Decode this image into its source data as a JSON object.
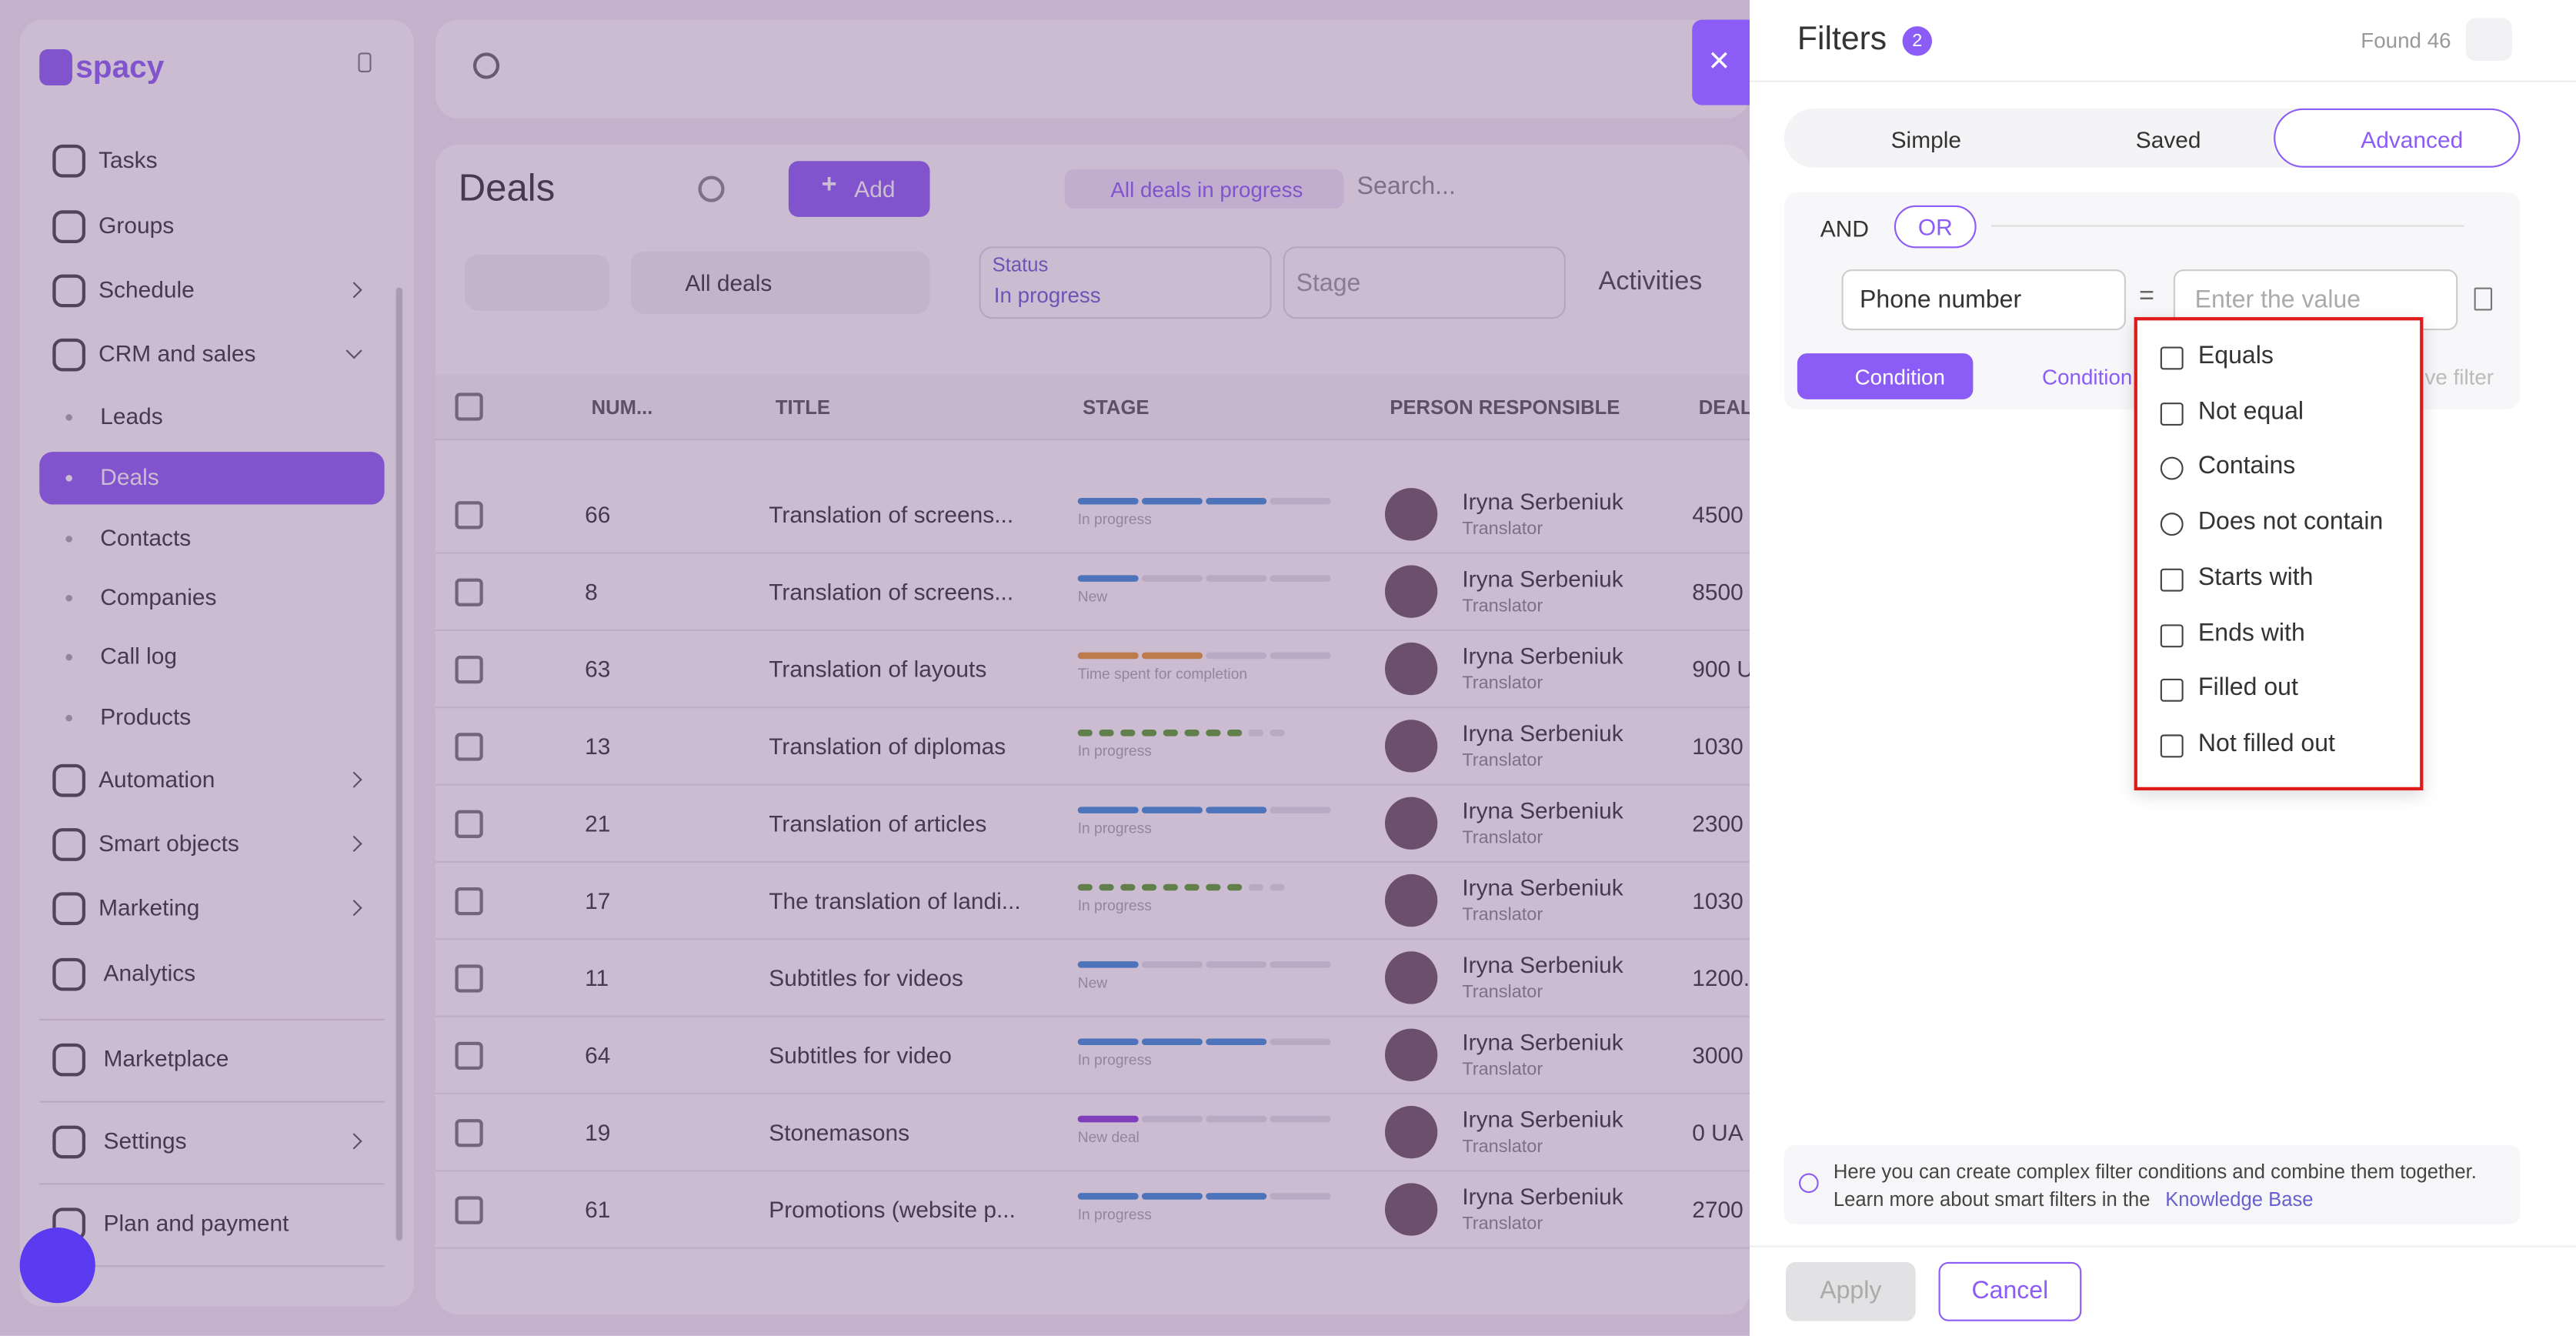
{
  "sidebar": {
    "logo": "spacy",
    "nav": [
      "Tasks",
      "Groups",
      "Schedule",
      "CRM and sales",
      "Leads",
      "Deals",
      "Contacts",
      "Companies",
      "Call log",
      "Products",
      "Automation",
      "Smart objects",
      "Marketing",
      "Analytics",
      "Marketplace",
      "Settings",
      "Plan and payment"
    ]
  },
  "main": {
    "title": "Deals",
    "add": "Add",
    "chip": "All deals in progress",
    "search": "Search...",
    "view": "All deals",
    "status_label": "Status",
    "status_value": "In progress",
    "stage": "Stage",
    "activities": "Activities",
    "headers": [
      "NUM...",
      "TITLE",
      "STAGE",
      "PERSON RESPONSIBLE",
      "DEAL"
    ],
    "rows": [
      [
        66,
        "Translation of screens...",
        "In progress",
        "Iryna Serbeniuk",
        "Translator",
        "4500"
      ],
      [
        8,
        "Translation of screens...",
        "New",
        "Iryna Serbeniuk",
        "Translator",
        "8500"
      ],
      [
        63,
        "Translation of layouts",
        "Time spent for completion",
        "Iryna Serbeniuk",
        "Translator",
        "900 U"
      ],
      [
        13,
        "Translation of diplomas",
        "In progress",
        "Iryna Serbeniuk",
        "Translator",
        "1030"
      ],
      [
        21,
        "Translation of articles",
        "In progress",
        "Iryna Serbeniuk",
        "Translator",
        "2300"
      ],
      [
        17,
        "The translation of landi...",
        "In progress",
        "Iryna Serbeniuk",
        "Translator",
        "1030"
      ],
      [
        11,
        "Subtitles for videos",
        "New",
        "Iryna Serbeniuk",
        "Translator",
        "1200."
      ],
      [
        64,
        "Subtitles for video",
        "In progress",
        "Iryna Serbeniuk",
        "Translator",
        "3000"
      ],
      [
        19,
        "Stonemasons",
        "New deal",
        "Iryna Serbeniuk",
        "Translator",
        "0 UA"
      ],
      [
        61,
        "Promotions (website p...",
        "In progress",
        "Iryna Serbeniuk",
        "Translator",
        "2700"
      ]
    ]
  },
  "filters": {
    "title": "Filters",
    "count": 2,
    "found": "Found 46",
    "tabs": [
      "Simple",
      "Saved",
      "Advanced"
    ],
    "and": "AND",
    "or": "OR",
    "field": "Phone number",
    "operator": "=",
    "placeholder": "Enter the value",
    "buttons": [
      "Condition",
      "Condition",
      "ve filter"
    ],
    "options": [
      "Equals",
      "Not equal",
      "Contains",
      "Does not contain",
      "Starts with",
      "Ends with",
      "Filled out",
      "Not filled out"
    ],
    "info": [
      "Here you can create complex filter conditions and combine them together.",
      "Learn more about smart filters in the"
    ],
    "link": "Knowledge Base",
    "apply": "Apply",
    "cancel": "Cancel"
  }
}
